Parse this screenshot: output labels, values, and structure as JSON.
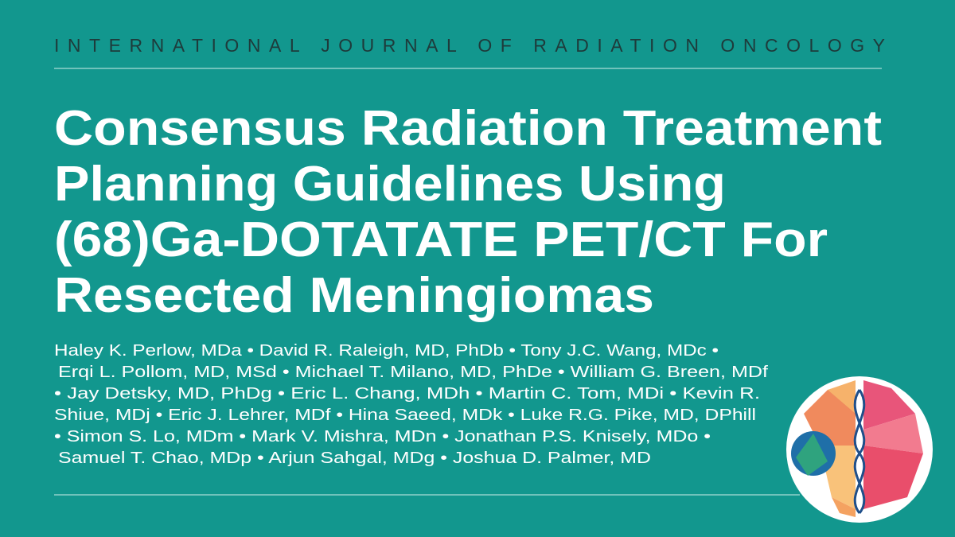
{
  "header": {
    "journal": "INTERNATIONAL JOURNAL OF RADIATION ONCOLOGY"
  },
  "title": {
    "lines": [
      "Consensus Radiation Treatment",
      "Planning Guidelines Using",
      "(68)Ga-DOTATATE PET/CT For",
      "Resected Meningiomas"
    ]
  },
  "authors": {
    "lines": [
      "Haley K. Perlow, MDa • David R. Raleigh, MD, PhDb • Tony J.C. Wang, MDc •",
      "Erqi L. Pollom, MD, MSd • Michael T. Milano, MD, PhDe • William G. Breen, MDf",
      "• Jay Detsky, MD, PhDg • Eric L. Chang, MDh • Martin C. Tom, MDi • Kevin R.",
      "Shiue, MDj • Eric J. Lehrer, MDf • Hina Saeed, MDk • Luke R.G. Pike, MD, DPhill",
      "• Simon S. Lo, MDm • Mark V. Mishra, MDn • Jonathan P.S. Knisely, MDo •",
      "Samuel T. Chao, MDp • Arjun Sahgal, MDg • Joshua D. Palmer, MD"
    ]
  }
}
